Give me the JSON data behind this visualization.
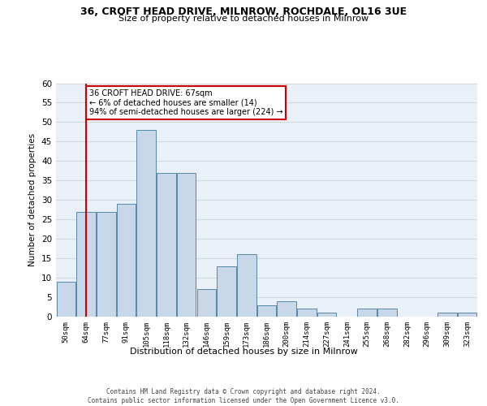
{
  "title_line1": "36, CROFT HEAD DRIVE, MILNROW, ROCHDALE, OL16 3UE",
  "title_line2": "Size of property relative to detached houses in Milnrow",
  "xlabel": "Distribution of detached houses by size in Milnrow",
  "ylabel": "Number of detached properties",
  "footnote": "Contains HM Land Registry data © Crown copyright and database right 2024.\nContains public sector information licensed under the Open Government Licence v3.0.",
  "bar_color": "#c8d8e8",
  "bar_edge_color": "#5588aa",
  "annotation_box_color": "#cc0000",
  "vline_color": "#cc0000",
  "vline_x": 1,
  "annotation_text": "36 CROFT HEAD DRIVE: 67sqm\n← 6% of detached houses are smaller (14)\n94% of semi-detached houses are larger (224) →",
  "categories": [
    "50sqm",
    "64sqm",
    "77sqm",
    "91sqm",
    "105sqm",
    "118sqm",
    "132sqm",
    "146sqm",
    "159sqm",
    "173sqm",
    "186sqm",
    "200sqm",
    "214sqm",
    "227sqm",
    "241sqm",
    "255sqm",
    "268sqm",
    "282sqm",
    "296sqm",
    "309sqm",
    "323sqm"
  ],
  "values": [
    9,
    27,
    27,
    29,
    48,
    37,
    37,
    7,
    13,
    16,
    3,
    4,
    2,
    1,
    0,
    2,
    2,
    0,
    0,
    1,
    1
  ],
  "ylim": [
    0,
    60
  ],
  "yticks": [
    0,
    5,
    10,
    15,
    20,
    25,
    30,
    35,
    40,
    45,
    50,
    55,
    60
  ],
  "grid_color": "#d0d8e0",
  "background_color": "#eaf0f8"
}
